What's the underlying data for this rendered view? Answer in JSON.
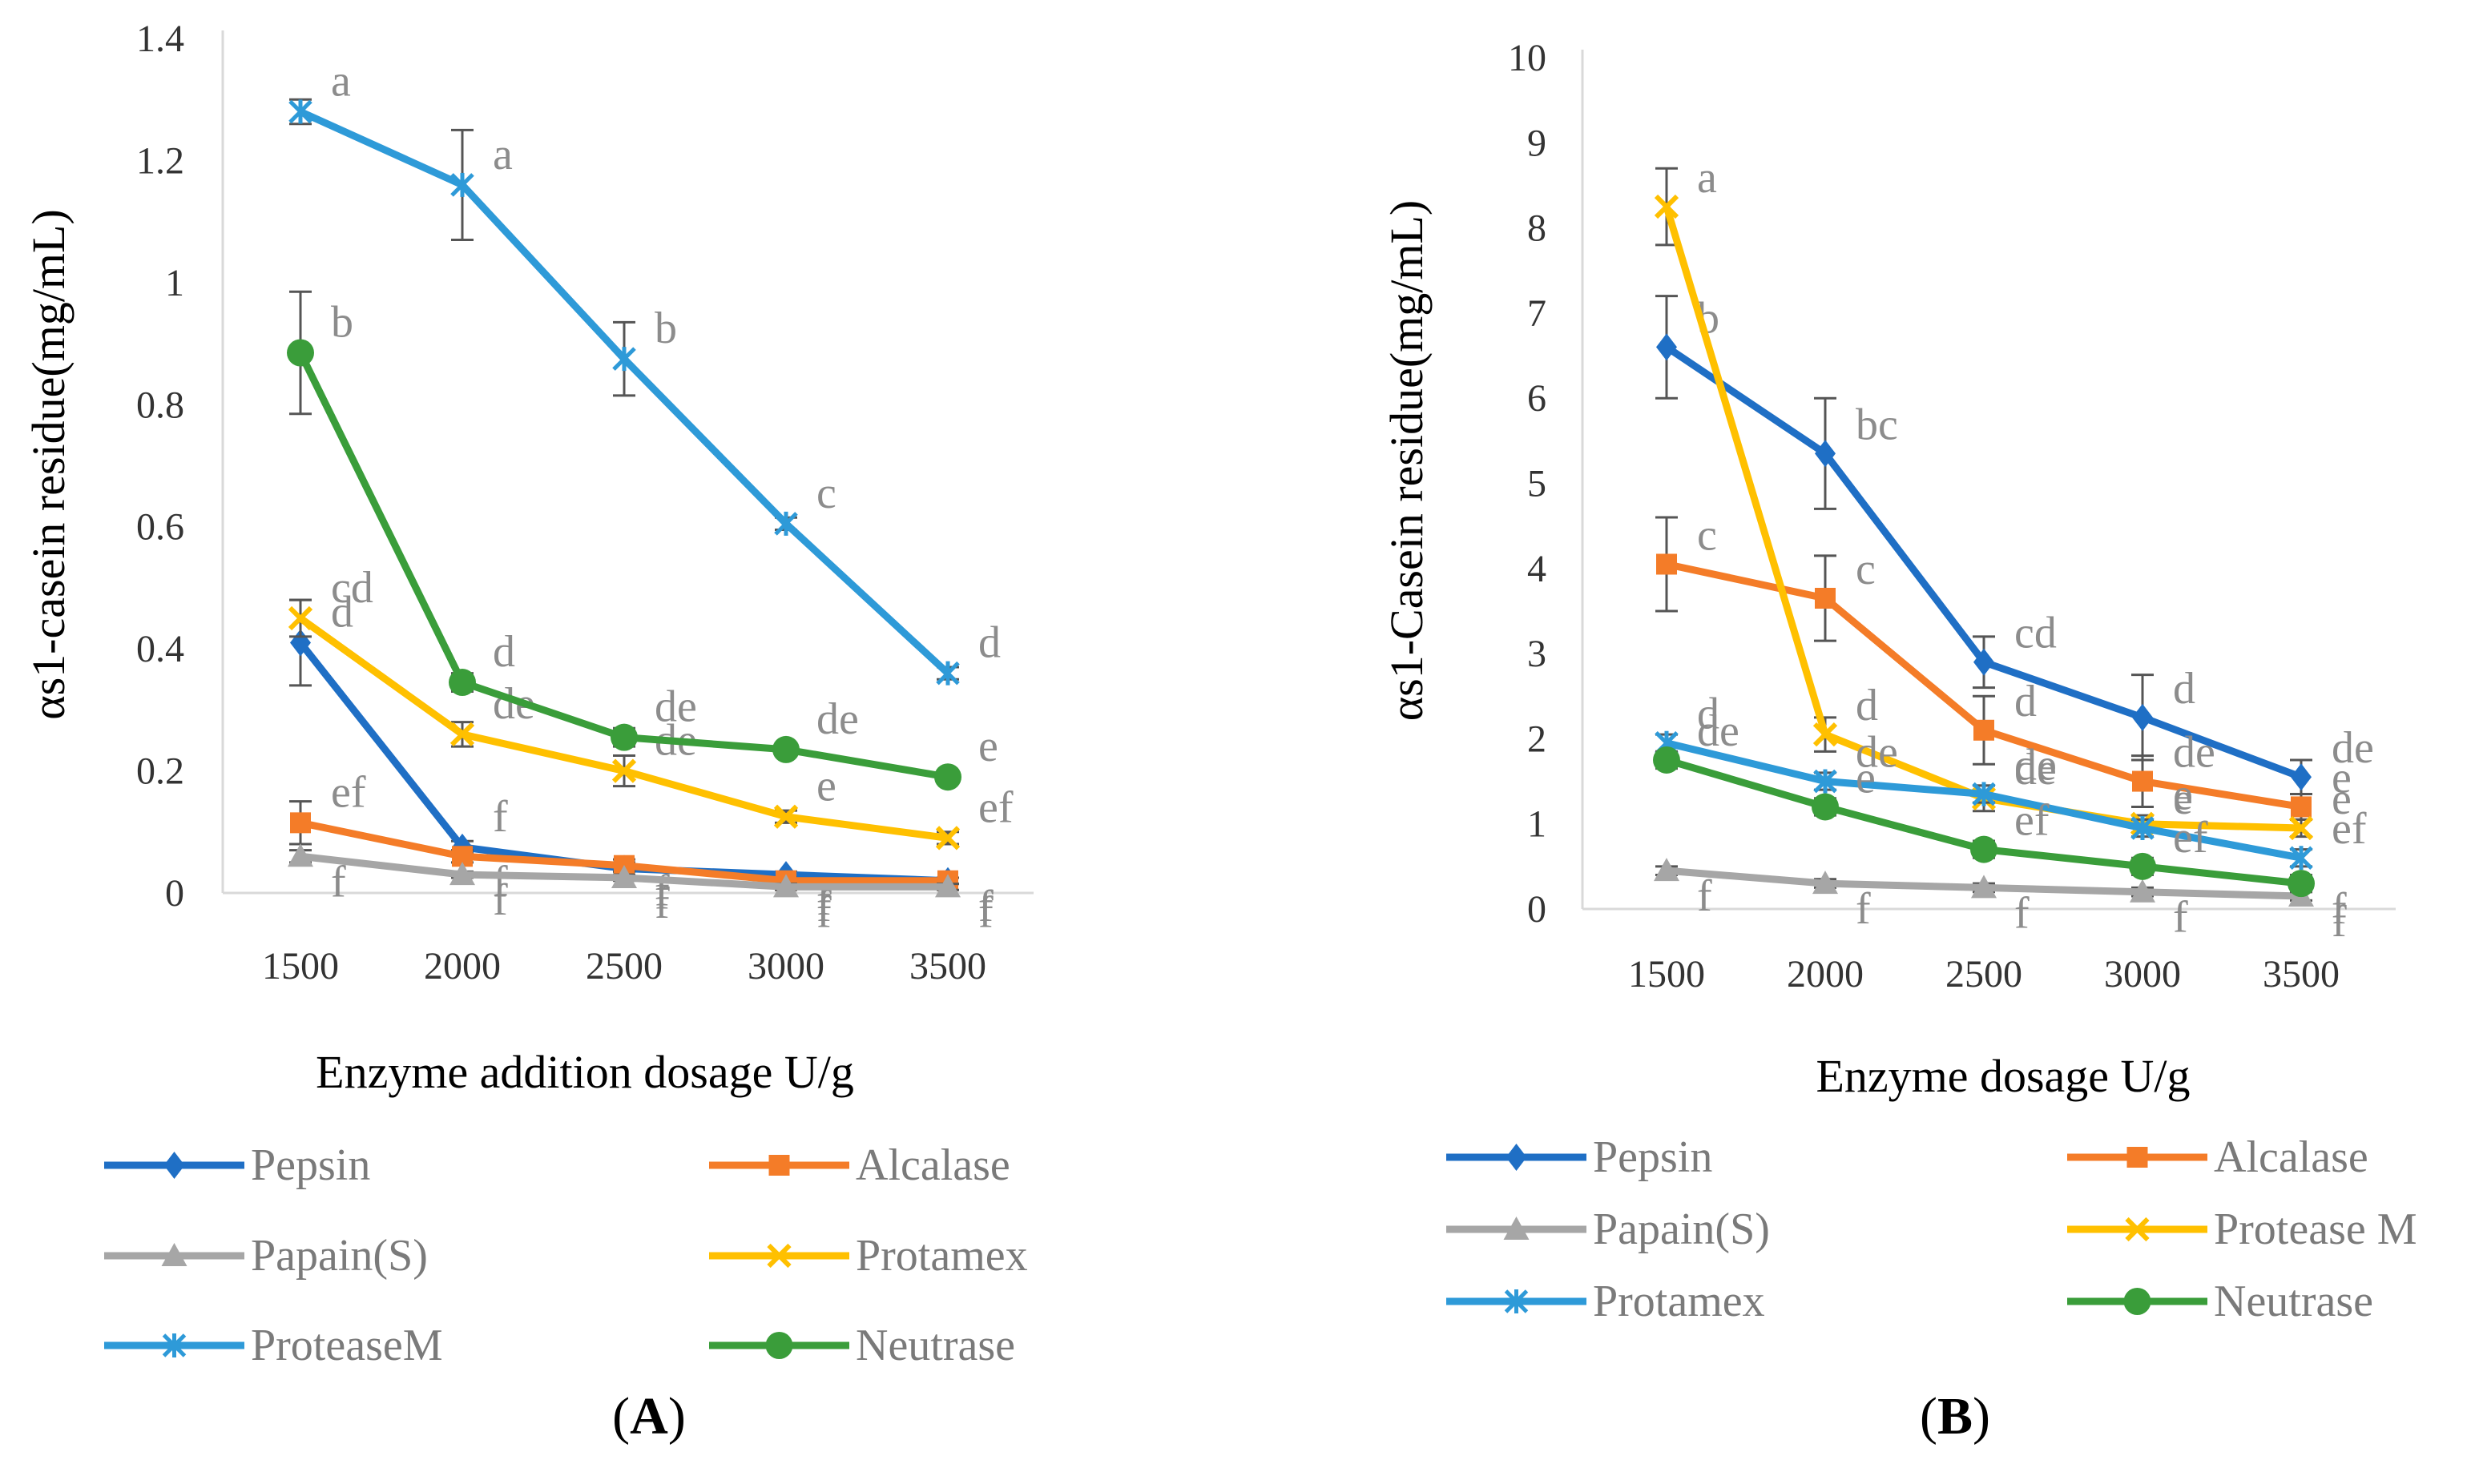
{
  "chart_data": [
    {
      "type": "line",
      "panel_label": "A",
      "xlabel": "Enzyme addition dosage U/g",
      "ylabel": "αs1-casein residue(mg/mL)",
      "categories": [
        "1500",
        "2000",
        "2500",
        "3000",
        "3500"
      ],
      "ylim": [
        0,
        1.4
      ],
      "yticks": [
        0,
        0.2,
        0.4,
        0.6,
        0.8,
        1,
        1.2,
        1.4
      ],
      "ytick_labels": [
        "0",
        "0.2",
        "0.4",
        "0.6",
        "0.8",
        "1",
        "1.2",
        "1.4"
      ],
      "grid": false,
      "legend_position": "bottom",
      "series": [
        {
          "name": "Pepsin",
          "color": "#1f6fc5",
          "marker": "diamond",
          "values": [
            0.41,
            0.075,
            0.04,
            0.03,
            0.02
          ],
          "errors": [
            0.07,
            0.01,
            0.01,
            0.005,
            0.005
          ],
          "labels": [
            "d",
            "f",
            "f",
            "f",
            "f"
          ]
        },
        {
          "name": "Alcalase",
          "color": "#f47c28",
          "marker": "square",
          "values": [
            0.115,
            0.06,
            0.045,
            0.02,
            0.02
          ],
          "errors": [
            0.035,
            0.01,
            0.01,
            0.005,
            0.005
          ],
          "labels": [
            "ef",
            "f",
            "f",
            "f",
            "f"
          ]
        },
        {
          "name": "Papain(S)",
          "color": "#a6a6a6",
          "marker": "triangle",
          "values": [
            0.06,
            0.03,
            0.025,
            0.01,
            0.01
          ],
          "errors": [
            0.01,
            0.005,
            0.005,
            0.005,
            0.005
          ],
          "labels": [
            "f",
            "f",
            "f",
            "f",
            "f"
          ]
        },
        {
          "name": "Protamex",
          "color": "#ffc000",
          "marker": "x",
          "values": [
            0.45,
            0.26,
            0.2,
            0.125,
            0.09
          ],
          "errors": [
            0.03,
            0.02,
            0.025,
            0.01,
            0.01
          ],
          "labels": [
            "cd",
            "de",
            "de",
            "e",
            "ef"
          ]
        },
        {
          "name": "ProteaseM",
          "color": "#2e9ad8",
          "marker": "star",
          "values": [
            1.28,
            1.16,
            0.875,
            0.605,
            0.36
          ],
          "errors": [
            0.02,
            0.09,
            0.06,
            0.01,
            0.01
          ],
          "labels": [
            "a",
            "a",
            "b",
            "c",
            "d"
          ]
        },
        {
          "name": "Neutrase",
          "color": "#3a9d3a",
          "marker": "circle",
          "values": [
            0.885,
            0.345,
            0.255,
            0.235,
            0.19
          ],
          "errors": [
            0.1,
            0.015,
            0.015,
            0.01,
            0.01
          ],
          "labels": [
            "b",
            "d",
            "de",
            "de",
            "e"
          ]
        }
      ]
    },
    {
      "type": "line",
      "panel_label": "B",
      "xlabel": "Enzyme dosage U/g",
      "ylabel": "αs1-Casein residue(mg/mL)",
      "categories": [
        "1500",
        "2000",
        "2500",
        "3000",
        "3500"
      ],
      "ylim": [
        0,
        10
      ],
      "yticks": [
        0,
        1,
        2,
        3,
        4,
        5,
        6,
        7,
        8,
        9,
        10
      ],
      "ytick_labels": [
        "0",
        "1",
        "2",
        "3",
        "4",
        "5",
        "6",
        "7",
        "8",
        "9",
        "10"
      ],
      "grid": false,
      "legend_position": "bottom",
      "series": [
        {
          "name": "Pepsin",
          "color": "#1f6fc5",
          "marker": "diamond",
          "values": [
            6.6,
            5.35,
            2.9,
            2.25,
            1.55
          ],
          "errors": [
            0.6,
            0.65,
            0.3,
            0.5,
            0.2
          ],
          "labels": [
            "b",
            "bc",
            "cd",
            "d",
            "de"
          ]
        },
        {
          "name": "Alcalase",
          "color": "#f47c28",
          "marker": "square",
          "values": [
            4.05,
            3.65,
            2.1,
            1.5,
            1.2
          ],
          "errors": [
            0.55,
            0.5,
            0.4,
            0.3,
            0.15
          ],
          "labels": [
            "c",
            "c",
            "d",
            "de",
            "e"
          ]
        },
        {
          "name": "Papain(S)",
          "color": "#a6a6a6",
          "marker": "triangle",
          "values": [
            0.45,
            0.3,
            0.25,
            0.2,
            0.15
          ],
          "errors": [
            0.05,
            0.05,
            0.05,
            0.05,
            0.05
          ],
          "labels": [
            "f",
            "f",
            "f",
            "f",
            "f"
          ]
        },
        {
          "name": "Protease M",
          "color": "#ffc000",
          "marker": "x",
          "values": [
            8.25,
            2.05,
            1.3,
            1.0,
            0.95
          ],
          "errors": [
            0.45,
            0.2,
            0.15,
            0.1,
            0.1
          ],
          "labels": [
            "a",
            "d",
            "de",
            "e",
            "e"
          ]
        },
        {
          "name": "Protamex",
          "color": "#2e9ad8",
          "marker": "star",
          "values": [
            1.95,
            1.5,
            1.35,
            0.95,
            0.6
          ],
          "errors": [
            0.1,
            0.1,
            0.1,
            0.1,
            0.1
          ],
          "labels": [
            "d",
            "de",
            "de",
            "e",
            "ef"
          ]
        },
        {
          "name": "Neutrase",
          "color": "#3a9d3a",
          "marker": "circle",
          "values": [
            1.75,
            1.2,
            0.7,
            0.5,
            0.3
          ],
          "errors": [
            0.1,
            0.1,
            0.1,
            0.1,
            0.1
          ],
          "labels": [
            "de",
            "e",
            "ef",
            "ef",
            "f"
          ]
        }
      ]
    }
  ]
}
